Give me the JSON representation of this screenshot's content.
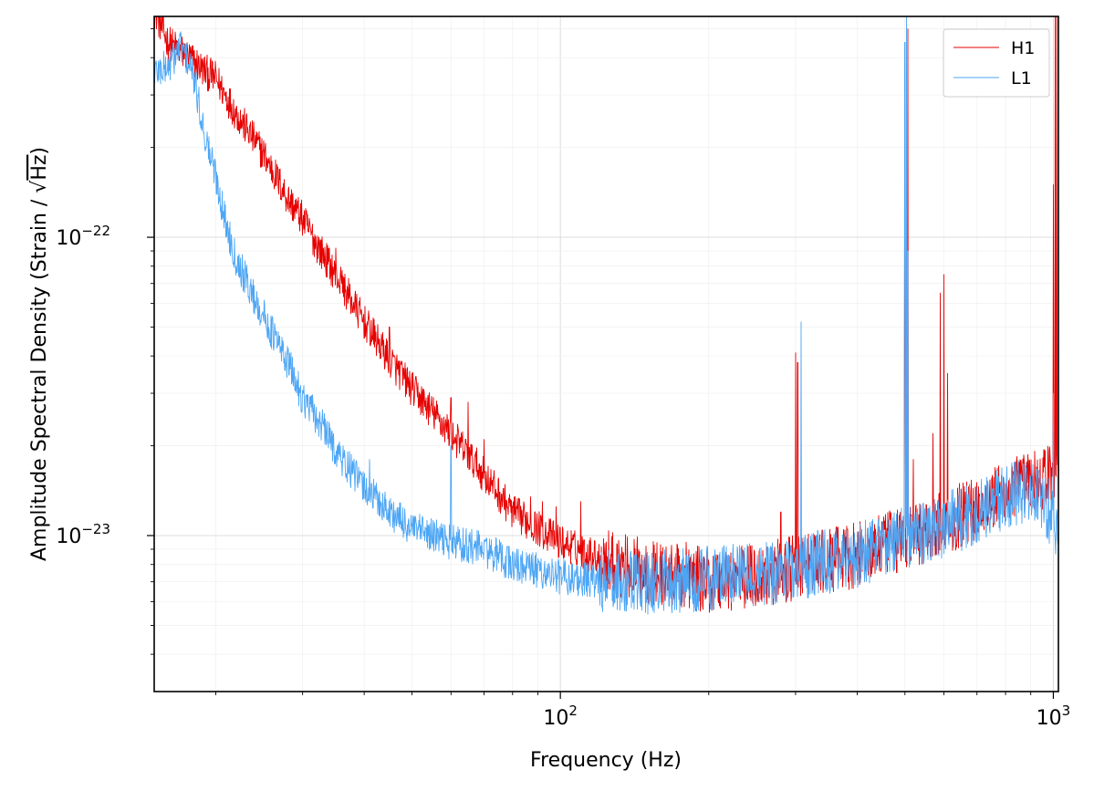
{
  "chart_data": {
    "type": "line",
    "title": "",
    "xlabel": "Frequency (Hz)",
    "ylabel_prefix": "Amplitude Spectral Density (Strain / ",
    "ylabel_radical": "√",
    "ylabel_radicand": "Hz",
    "ylabel_suffix": ")",
    "x_scale": "log",
    "y_scale": "log",
    "xlim": [
      15,
      1024
    ],
    "ylim": [
      3e-24,
      5.5e-22
    ],
    "grid": true,
    "legend_position": "top-right",
    "x_ticks": [
      {
        "value": 100,
        "base": "10",
        "exp": "2"
      },
      {
        "value": 1000,
        "base": "10",
        "exp": "3"
      }
    ],
    "y_ticks": [
      {
        "value": 1e-23,
        "base": "10",
        "exp": "−23"
      },
      {
        "value": 1e-22,
        "base": "10",
        "exp": "−22"
      }
    ],
    "series": [
      {
        "name": "H1",
        "color": "#e60000",
        "baseline": [
          [
            15,
            5.8e-22
          ],
          [
            16,
            4.5e-22
          ],
          [
            17,
            4.2e-22
          ],
          [
            18,
            3.9e-22
          ],
          [
            19,
            3.6e-22
          ],
          [
            20,
            3.4e-22
          ],
          [
            22,
            2.6e-22
          ],
          [
            25,
            1.9e-22
          ],
          [
            28,
            1.35e-22
          ],
          [
            30,
            1.15e-22
          ],
          [
            32,
            9.5e-23
          ],
          [
            35,
            7.5e-23
          ],
          [
            40,
            5.2e-23
          ],
          [
            45,
            3.9e-23
          ],
          [
            50,
            3.1e-23
          ],
          [
            60,
            2.2e-23
          ],
          [
            70,
            1.6e-23
          ],
          [
            80,
            1.2e-23
          ],
          [
            100,
            9.5e-24
          ],
          [
            130,
            8e-24
          ],
          [
            160,
            7.4e-24
          ],
          [
            200,
            7.1e-24
          ],
          [
            250,
            7.3e-24
          ],
          [
            300,
            7.8e-24
          ],
          [
            400,
            8.6e-24
          ],
          [
            500,
            9.8e-24
          ],
          [
            600,
            1.1e-23
          ],
          [
            700,
            1.25e-23
          ],
          [
            850,
            1.45e-23
          ],
          [
            950,
            1.55e-23
          ],
          [
            1000,
            1.6e-23
          ],
          [
            1024,
            1.7e-23
          ]
        ],
        "lines": [
          [
            35,
            9.2e-23
          ],
          [
            36,
            7e-23
          ],
          [
            45,
            5e-23
          ],
          [
            60,
            2.9e-23
          ],
          [
            65,
            2.8e-23
          ],
          [
            70,
            2.1e-23
          ],
          [
            87,
            1.35e-23
          ],
          [
            92,
            1.3e-23
          ],
          [
            98,
            1.25e-23
          ],
          [
            110,
            1.3e-23
          ],
          [
            180,
            9.5e-24
          ],
          [
            280,
            1.2e-23
          ],
          [
            300,
            4.1e-23
          ],
          [
            303,
            3.8e-23
          ],
          [
            500,
            1.15e-22
          ],
          [
            507,
            5e-22
          ],
          [
            520,
            1.8e-23
          ],
          [
            570,
            2.2e-23
          ],
          [
            590,
            6.5e-23
          ],
          [
            600,
            7.5e-23
          ],
          [
            610,
            3.5e-23
          ],
          [
            1000,
            1.5e-22
          ],
          [
            1008,
            5.5e-22
          ],
          [
            1016,
            5.5e-22
          ]
        ]
      },
      {
        "name": "L1",
        "color": "#4da6f5",
        "baseline": [
          [
            15,
            3.6e-22
          ],
          [
            16,
            3.7e-22
          ],
          [
            17,
            4.4e-22
          ],
          [
            18,
            3.5e-22
          ],
          [
            19,
            2.2e-22
          ],
          [
            20,
            1.6e-22
          ],
          [
            21,
            1.1e-22
          ],
          [
            22,
            8.5e-23
          ],
          [
            24,
            6.2e-23
          ],
          [
            26,
            4.8e-23
          ],
          [
            28,
            3.8e-23
          ],
          [
            30,
            2.9e-23
          ],
          [
            33,
            2.3e-23
          ],
          [
            36,
            1.8e-23
          ],
          [
            40,
            1.45e-23
          ],
          [
            45,
            1.2e-23
          ],
          [
            50,
            1.05e-23
          ],
          [
            60,
            9.5e-24
          ],
          [
            70,
            9e-24
          ],
          [
            80,
            8e-24
          ],
          [
            100,
            7.3e-24
          ],
          [
            130,
            6.9e-24
          ],
          [
            160,
            7e-24
          ],
          [
            200,
            7.2e-24
          ],
          [
            250,
            7.4e-24
          ],
          [
            300,
            7.8e-24
          ],
          [
            400,
            8.6e-24
          ],
          [
            500,
            9.7e-24
          ],
          [
            600,
            1.08e-23
          ],
          [
            700,
            1.2e-23
          ],
          [
            850,
            1.4e-23
          ],
          [
            900,
            1.42e-23
          ],
          [
            950,
            1.3e-23
          ],
          [
            1000,
            1.15e-23
          ],
          [
            1024,
            1.05e-23
          ]
        ],
        "lines": [
          [
            41,
            1.8e-23
          ],
          [
            60,
            2e-23
          ],
          [
            308,
            5.2e-23
          ],
          [
            500,
            4.5e-22
          ],
          [
            504,
            6.5e-22
          ],
          [
            507,
            9e-23
          ],
          [
            1000,
            3e-23
          ]
        ]
      }
    ]
  }
}
